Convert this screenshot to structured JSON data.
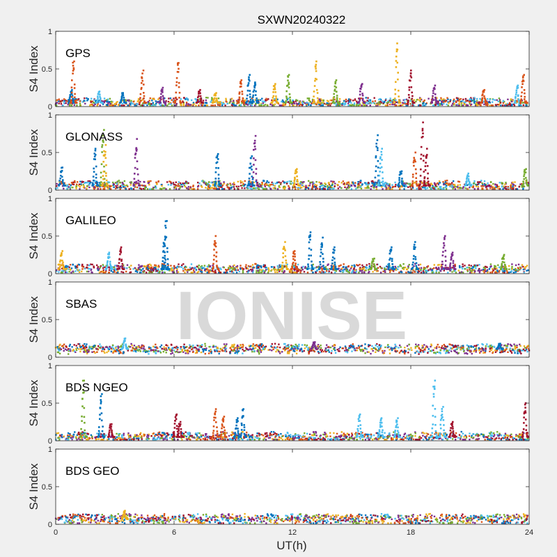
{
  "figure": {
    "title": "SXWN20240322",
    "xlabel": "UT(h)",
    "watermark": "IONISE",
    "background": "#f0f0f0",
    "axes_background": "#ffffff"
  },
  "chart_data": {
    "type": "scatter",
    "xlim": [
      0,
      24
    ],
    "x_ticks": [
      0,
      6,
      12,
      18,
      24
    ],
    "x_tick_labels": [
      "0",
      "6",
      "12",
      "18",
      "24"
    ],
    "ylim": [
      0,
      1
    ],
    "y_ticks": [
      0,
      0.5,
      1
    ],
    "y_tick_labels": [
      "0",
      "0.5",
      "1"
    ],
    "ylabel": "S4 Index",
    "grid": false,
    "marker_colors": [
      "#0072bd",
      "#d95319",
      "#edb120",
      "#7e2f8e",
      "#77ac30",
      "#4dbeee",
      "#a2142f"
    ],
    "panels": [
      {
        "name": "GPS",
        "baseline": 0.05,
        "spikes": [
          [
            0.9,
            0.22,
            0
          ],
          [
            1.0,
            0.6,
            1
          ],
          [
            2.3,
            0.2,
            5
          ],
          [
            3.5,
            0.18,
            0
          ],
          [
            4.5,
            0.48,
            1
          ],
          [
            5.5,
            0.25,
            3
          ],
          [
            6.3,
            0.58,
            1
          ],
          [
            7.4,
            0.22,
            6
          ],
          [
            8.2,
            0.18,
            2
          ],
          [
            9.5,
            0.35,
            1
          ],
          [
            9.9,
            0.42,
            0
          ],
          [
            10.2,
            0.32,
            0
          ],
          [
            11.2,
            0.3,
            2
          ],
          [
            11.9,
            0.42,
            4
          ],
          [
            13.3,
            0.6,
            2
          ],
          [
            14.3,
            0.35,
            4
          ],
          [
            15.6,
            0.3,
            3
          ],
          [
            17.4,
            0.84,
            2
          ],
          [
            18.1,
            0.48,
            6
          ],
          [
            19.3,
            0.28,
            3
          ],
          [
            21.8,
            0.22,
            1
          ],
          [
            23.5,
            0.28,
            5
          ],
          [
            23.8,
            0.42,
            1
          ]
        ]
      },
      {
        "name": "GLONASS",
        "baseline": 0.06,
        "spikes": [
          [
            0.4,
            0.3,
            0
          ],
          [
            2.1,
            0.55,
            0
          ],
          [
            2.5,
            0.8,
            4
          ],
          [
            2.6,
            0.6,
            2
          ],
          [
            4.2,
            0.68,
            3
          ],
          [
            8.3,
            0.48,
            0
          ],
          [
            10.2,
            0.72,
            3
          ],
          [
            10.0,
            0.45,
            0
          ],
          [
            12.3,
            0.28,
            2
          ],
          [
            16.4,
            0.73,
            0
          ],
          [
            16.6,
            0.55,
            5
          ],
          [
            17.6,
            0.25,
            0
          ],
          [
            18.3,
            0.5,
            1
          ],
          [
            18.7,
            0.9,
            6
          ],
          [
            18.9,
            0.55,
            6
          ],
          [
            21.0,
            0.22,
            5
          ],
          [
            23.9,
            0.28,
            4
          ]
        ]
      },
      {
        "name": "GALILEO",
        "baseline": 0.06,
        "spikes": [
          [
            0.4,
            0.3,
            2
          ],
          [
            2.8,
            0.28,
            5
          ],
          [
            3.4,
            0.35,
            6
          ],
          [
            5.7,
            0.7,
            0
          ],
          [
            5.6,
            0.45,
            0
          ],
          [
            8.2,
            0.5,
            1
          ],
          [
            11.7,
            0.42,
            2
          ],
          [
            12.2,
            0.3,
            1
          ],
          [
            13.0,
            0.55,
            0
          ],
          [
            13.6,
            0.48,
            0
          ],
          [
            14.2,
            0.35,
            0
          ],
          [
            16.2,
            0.2,
            4
          ],
          [
            17.1,
            0.35,
            0
          ],
          [
            18.3,
            0.42,
            0
          ],
          [
            19.8,
            0.5,
            3
          ],
          [
            20.2,
            0.28,
            3
          ],
          [
            22.8,
            0.25,
            4
          ]
        ]
      },
      {
        "name": "SBAS",
        "baseline": 0.11,
        "spikes": [
          [
            3.6,
            0.25,
            5
          ],
          [
            13.2,
            0.2,
            3
          ],
          [
            22.6,
            0.18,
            0
          ]
        ]
      },
      {
        "name": "BDS NGEO",
        "baseline": 0.05,
        "spikes": [
          [
            1.5,
            0.8,
            4
          ],
          [
            2.4,
            0.62,
            0
          ],
          [
            2.9,
            0.22,
            6
          ],
          [
            6.2,
            0.35,
            6
          ],
          [
            6.4,
            0.25,
            6
          ],
          [
            8.2,
            0.42,
            1
          ],
          [
            8.6,
            0.32,
            1
          ],
          [
            9.6,
            0.42,
            0
          ],
          [
            9.3,
            0.3,
            0
          ],
          [
            15.5,
            0.35,
            5
          ],
          [
            16.6,
            0.3,
            5
          ],
          [
            17.4,
            0.3,
            5
          ],
          [
            19.3,
            0.8,
            5
          ],
          [
            19.7,
            0.45,
            5
          ],
          [
            20.2,
            0.25,
            6
          ],
          [
            23.9,
            0.5,
            6
          ]
        ]
      },
      {
        "name": "BDS GEO",
        "baseline": 0.07,
        "spikes": [
          [
            3.6,
            0.18,
            2
          ]
        ]
      }
    ]
  }
}
